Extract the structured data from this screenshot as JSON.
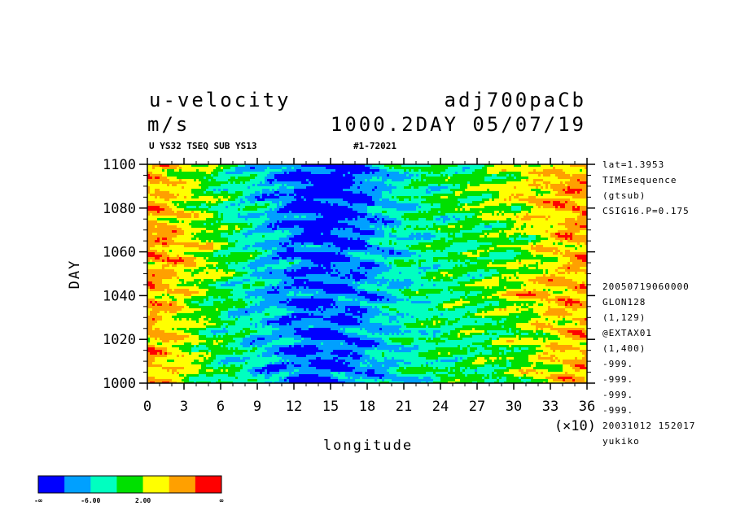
{
  "header": {
    "title_left": "u-velocity",
    "title_right": "adj700paCb",
    "units": "m/s",
    "run_info": "1000.2DAY 05/07/19",
    "sub_left": "U YS32 TSEQ SUB YS13",
    "sub_right": "#1-72021"
  },
  "side_info_top": [
    "lat=1.3953",
    "TIMEsequence",
    "(gtsub)",
    "CSIG16.P=0.175"
  ],
  "side_info_bottom": [
    "20050719060000",
    "GLON128",
    "(1,129)",
    "@EXTAX01",
    "(1,400)",
    "-999.",
    "-999.",
    "-999.",
    "-999.",
    "20031012 152017",
    "yukiko"
  ],
  "chart_data": {
    "type": "heatmap",
    "title": "u-velocity",
    "xlabel": "longitude",
    "ylabel": "DAY",
    "x_multiplier_label": "(×10)",
    "xlim": [
      0,
      36
    ],
    "ylim": [
      1000,
      1100
    ],
    "xticks": [
      "0",
      "3",
      "6",
      "9",
      "12",
      "15",
      "18",
      "21",
      "24",
      "27",
      "30",
      "33",
      "36"
    ],
    "yticks": [
      "1000",
      "1020",
      "1040",
      "1060",
      "1080",
      "1100"
    ],
    "colorbar": {
      "colors": [
        "#0000ff",
        "#00a0ff",
        "#00ffc0",
        "#00e000",
        "#ffff00",
        "#ffa000",
        "#ff0000"
      ],
      "labels": [
        "-∞",
        "-6.00",
        "2.00",
        "∞"
      ]
    }
  }
}
